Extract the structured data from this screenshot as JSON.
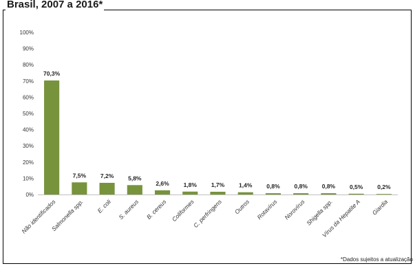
{
  "chart_data": {
    "type": "bar",
    "title": "Brasil, 2007 a 2016*",
    "categories": [
      "Não identificados",
      "Salmonella spp.",
      "E. coli",
      "S. aureus",
      "B. cereus",
      "Coliformes",
      "C. perfringens",
      "Outros",
      "Rotavírus",
      "Norovírus",
      "Shigella spp.",
      "Vírus da Hepatite A",
      "Giardia"
    ],
    "values": [
      70.3,
      7.5,
      7.2,
      5.8,
      2.6,
      1.8,
      1.7,
      1.4,
      0.8,
      0.8,
      0.8,
      0.5,
      0.2
    ],
    "data_labels": [
      "70,3%",
      "7,5%",
      "7,2%",
      "5,8%",
      "2,6%",
      "1,8%",
      "1,7%",
      "1,4%",
      "0,8%",
      "0,8%",
      "0,8%",
      "0,5%",
      "0,2%"
    ],
    "ylim": [
      0,
      100
    ],
    "y_ticks": [
      0,
      10,
      20,
      30,
      40,
      50,
      60,
      70,
      80,
      90,
      100
    ],
    "y_tick_labels": [
      "0%",
      "10%",
      "20%",
      "30%",
      "40%",
      "50%",
      "60%",
      "70%",
      "80%",
      "90%",
      "100%"
    ],
    "xlabel": "",
    "ylabel": "",
    "grid": false,
    "legend": "none",
    "bar_color": "#77933c",
    "footnote": "*Dados sujeitos a atualização"
  }
}
